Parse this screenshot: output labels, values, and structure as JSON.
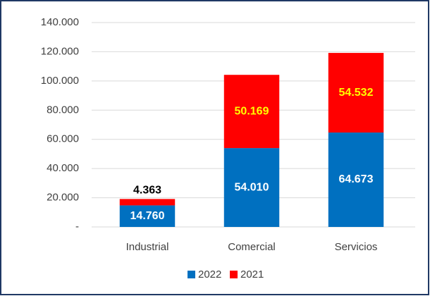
{
  "chart_data": {
    "type": "stacked_bar",
    "categories": [
      "Industrial",
      "Comercial",
      "Servicios"
    ],
    "series": [
      {
        "name": "2022",
        "color": "#0070c0",
        "values": [
          14760,
          54010,
          64673
        ],
        "value_labels": [
          "14.760",
          "54.010",
          "64.673"
        ],
        "label_colors": [
          "#ffffff",
          "#ffffff",
          "#ffffff"
        ]
      },
      {
        "name": "2021",
        "color": "#ff0000",
        "values": [
          4363,
          50169,
          54532
        ],
        "value_labels": [
          "4.363",
          "50.169",
          "54.532"
        ],
        "label_colors": [
          "#000000",
          "#ffff00",
          "#ffff00"
        ]
      }
    ],
    "ylim": [
      0,
      140000
    ],
    "yticks": [
      {
        "value": 0,
        "label": "-"
      },
      {
        "value": 20000,
        "label": "20.000"
      },
      {
        "value": 40000,
        "label": "40.000"
      },
      {
        "value": 60000,
        "label": "60.000"
      },
      {
        "value": 80000,
        "label": "80.000"
      },
      {
        "value": 100000,
        "label": "100.000"
      },
      {
        "value": 120000,
        "label": "120.000"
      },
      {
        "value": 140000,
        "label": "140.000"
      }
    ],
    "grid": true,
    "legend": "bottom"
  }
}
